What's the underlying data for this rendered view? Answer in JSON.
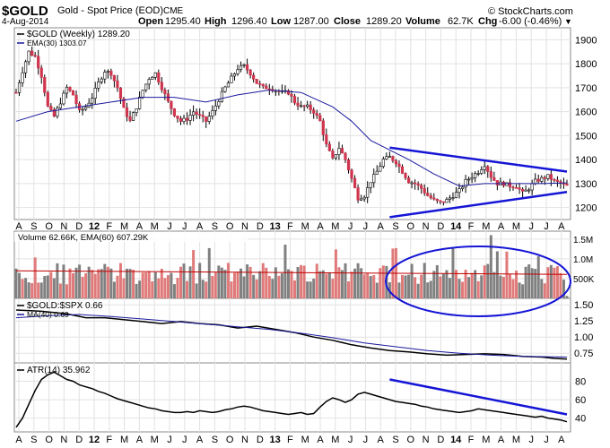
{
  "header": {
    "symbol": "$GOLD",
    "description": "Gold - Spot Price (EOD)",
    "exchange": "CME",
    "date": "4-Aug-2014",
    "open_label": "Open",
    "open": "1295.40",
    "high_label": "High",
    "high": "1296.40",
    "low_label": "Low",
    "low": "1287.00",
    "close_label": "Close",
    "close": "1289.20",
    "volume_label": "Volume",
    "volume": "62.7K",
    "chg_label": "Chg",
    "chg": "-6.00 (-0.46%)",
    "chg_arrow": "▼",
    "watermark": "© StockCharts.com"
  },
  "colors": {
    "up": "#000000",
    "down": "#d0344e",
    "ema": "#1a1a9e",
    "vol_up": "#808080",
    "vol_down": "#e07a7a",
    "ema60": "#c00000",
    "annot": "#1515d6",
    "grid": "#e2e2e2"
  },
  "chart_data": [
    {
      "type": "candlestick",
      "legend": [
        "$GOLD (Weekly) 1289.20",
        "EMA(30) 1303.07"
      ],
      "x_tick_labels": [
        "A",
        "S",
        "O",
        "N",
        "D",
        "12",
        "F",
        "M",
        "A",
        "M",
        "J",
        "J",
        "A",
        "S",
        "O",
        "N",
        "D",
        "13",
        "F",
        "M",
        "A",
        "M",
        "J",
        "J",
        "A",
        "S",
        "O",
        "N",
        "D",
        "14",
        "F",
        "M",
        "A",
        "M",
        "J",
        "J",
        "A"
      ],
      "y_ticks": [
        1200,
        1300,
        1400,
        1500,
        1600,
        1700,
        1800,
        1900
      ],
      "ylim": [
        1150,
        1950
      ],
      "close_path": [
        [
          0,
          1680
        ],
        [
          2,
          1770
        ],
        [
          4,
          1850
        ],
        [
          6,
          1830
        ],
        [
          8,
          1750
        ],
        [
          10,
          1620
        ],
        [
          12,
          1580
        ],
        [
          14,
          1640
        ],
        [
          16,
          1700
        ],
        [
          18,
          1670
        ],
        [
          20,
          1600
        ],
        [
          22,
          1620
        ],
        [
          24,
          1660
        ],
        [
          26,
          1720
        ],
        [
          28,
          1770
        ],
        [
          30,
          1760
        ],
        [
          32,
          1700
        ],
        [
          34,
          1610
        ],
        [
          36,
          1560
        ],
        [
          38,
          1620
        ],
        [
          40,
          1690
        ],
        [
          42,
          1740
        ],
        [
          44,
          1760
        ],
        [
          46,
          1700
        ],
        [
          48,
          1640
        ],
        [
          50,
          1590
        ],
        [
          52,
          1560
        ],
        [
          54,
          1570
        ],
        [
          56,
          1600
        ],
        [
          58,
          1580
        ],
        [
          60,
          1560
        ],
        [
          62,
          1600
        ],
        [
          64,
          1650
        ],
        [
          66,
          1700
        ],
        [
          68,
          1740
        ],
        [
          70,
          1780
        ],
        [
          72,
          1790
        ],
        [
          74,
          1760
        ],
        [
          76,
          1720
        ],
        [
          78,
          1700
        ],
        [
          80,
          1700
        ],
        [
          82,
          1690
        ],
        [
          84,
          1680
        ],
        [
          86,
          1680
        ],
        [
          88,
          1640
        ],
        [
          90,
          1620
        ],
        [
          92,
          1620
        ],
        [
          94,
          1600
        ],
        [
          96,
          1560
        ],
        [
          98,
          1460
        ],
        [
          100,
          1400
        ],
        [
          102,
          1450
        ],
        [
          104,
          1400
        ],
        [
          106,
          1320
        ],
        [
          108,
          1240
        ],
        [
          110,
          1250
        ],
        [
          112,
          1310
        ],
        [
          114,
          1350
        ],
        [
          116,
          1400
        ],
        [
          118,
          1410
        ],
        [
          120,
          1390
        ],
        [
          122,
          1350
        ],
        [
          124,
          1310
        ],
        [
          126,
          1300
        ],
        [
          128,
          1280
        ],
        [
          130,
          1250
        ],
        [
          132,
          1230
        ],
        [
          134,
          1220
        ],
        [
          136,
          1230
        ],
        [
          138,
          1250
        ],
        [
          140,
          1270
        ],
        [
          142,
          1310
        ],
        [
          144,
          1330
        ],
        [
          146,
          1350
        ],
        [
          148,
          1380
        ],
        [
          150,
          1330
        ],
        [
          152,
          1300
        ],
        [
          154,
          1300
        ],
        [
          156,
          1290
        ],
        [
          158,
          1290
        ],
        [
          160,
          1260
        ],
        [
          162,
          1280
        ],
        [
          164,
          1310
        ],
        [
          166,
          1320
        ],
        [
          168,
          1330
        ],
        [
          170,
          1310
        ],
        [
          172,
          1300
        ],
        [
          174,
          1289.2
        ]
      ],
      "ema30_path": [
        [
          0,
          1560
        ],
        [
          10,
          1600
        ],
        [
          20,
          1620
        ],
        [
          30,
          1640
        ],
        [
          40,
          1660
        ],
        [
          50,
          1660
        ],
        [
          60,
          1640
        ],
        [
          70,
          1670
        ],
        [
          80,
          1690
        ],
        [
          90,
          1680
        ],
        [
          100,
          1620
        ],
        [
          106,
          1560
        ],
        [
          112,
          1480
        ],
        [
          118,
          1440
        ],
        [
          124,
          1400
        ],
        [
          132,
          1340
        ],
        [
          140,
          1290
        ],
        [
          148,
          1300
        ],
        [
          156,
          1300
        ],
        [
          166,
          1300
        ],
        [
          174,
          1303.07
        ]
      ],
      "annotations": {
        "upper_trendline": [
          [
            118,
            1450
          ],
          [
            174,
            1350
          ]
        ],
        "lower_trendline": [
          [
            118,
            1160
          ],
          [
            174,
            1265
          ]
        ]
      }
    },
    {
      "type": "bar",
      "legend": "Volume 62.66K, EMA(60) 607.29K",
      "y_tick_labels": [
        "1.5M",
        "1.0M",
        "500K"
      ],
      "y_ticks": [
        1500000,
        1000000,
        500000
      ],
      "ylim": [
        0,
        1700000
      ],
      "ema60": 607290,
      "annotation": "ellipse"
    },
    {
      "type": "line",
      "legend": [
        "$GOLD:$SPX 0.66",
        "MA(40) 0.69"
      ],
      "y_tick_labels": [
        "1.50",
        "1.25",
        "1.00",
        "0.75"
      ],
      "y_ticks": [
        1.5,
        1.25,
        1.0,
        0.75
      ],
      "ylim": [
        0.6,
        1.6
      ],
      "ratio_path": [
        [
          0,
          1.42
        ],
        [
          8,
          1.4
        ],
        [
          16,
          1.36
        ],
        [
          22,
          1.3
        ],
        [
          28,
          1.3
        ],
        [
          34,
          1.27
        ],
        [
          40,
          1.24
        ],
        [
          46,
          1.21
        ],
        [
          52,
          1.24
        ],
        [
          58,
          1.21
        ],
        [
          64,
          1.19
        ],
        [
          70,
          1.14
        ],
        [
          76,
          1.17
        ],
        [
          82,
          1.12
        ],
        [
          88,
          1.07
        ],
        [
          94,
          1.0
        ],
        [
          100,
          0.95
        ],
        [
          106,
          0.88
        ],
        [
          112,
          0.83
        ],
        [
          118,
          0.79
        ],
        [
          124,
          0.77
        ],
        [
          130,
          0.74
        ],
        [
          136,
          0.72
        ],
        [
          142,
          0.73
        ],
        [
          148,
          0.74
        ],
        [
          154,
          0.73
        ],
        [
          160,
          0.7
        ],
        [
          166,
          0.69
        ],
        [
          170,
          0.67
        ],
        [
          174,
          0.66
        ]
      ],
      "ma_path": [
        [
          0,
          1.3
        ],
        [
          10,
          1.33
        ],
        [
          20,
          1.35
        ],
        [
          30,
          1.32
        ],
        [
          40,
          1.28
        ],
        [
          50,
          1.24
        ],
        [
          60,
          1.2
        ],
        [
          70,
          1.16
        ],
        [
          80,
          1.12
        ],
        [
          90,
          1.06
        ],
        [
          100,
          0.99
        ],
        [
          110,
          0.91
        ],
        [
          120,
          0.85
        ],
        [
          130,
          0.79
        ],
        [
          140,
          0.75
        ],
        [
          150,
          0.72
        ],
        [
          160,
          0.7
        ],
        [
          174,
          0.69
        ]
      ]
    },
    {
      "type": "line",
      "legend": "ATR(14) 35.962",
      "y_tick_labels": [
        "80",
        "60",
        "40"
      ],
      "y_ticks": [
        80,
        60,
        40
      ],
      "ylim": [
        25,
        100
      ],
      "atr_path": [
        [
          0,
          30
        ],
        [
          2,
          40
        ],
        [
          4,
          55
        ],
        [
          6,
          70
        ],
        [
          8,
          82
        ],
        [
          10,
          87
        ],
        [
          12,
          90
        ],
        [
          14,
          86
        ],
        [
          16,
          82
        ],
        [
          18,
          80
        ],
        [
          20,
          76
        ],
        [
          22,
          74
        ],
        [
          24,
          72
        ],
        [
          26,
          69
        ],
        [
          28,
          67
        ],
        [
          30,
          64
        ],
        [
          32,
          61
        ],
        [
          34,
          59
        ],
        [
          36,
          57
        ],
        [
          38,
          55
        ],
        [
          40,
          53
        ],
        [
          42,
          51
        ],
        [
          44,
          50
        ],
        [
          46,
          48
        ],
        [
          48,
          47
        ],
        [
          50,
          46
        ],
        [
          52,
          46
        ],
        [
          54,
          47
        ],
        [
          56,
          46
        ],
        [
          58,
          48
        ],
        [
          60,
          47
        ],
        [
          62,
          46
        ],
        [
          64,
          47
        ],
        [
          66,
          49
        ],
        [
          68,
          50
        ],
        [
          70,
          52
        ],
        [
          72,
          53
        ],
        [
          74,
          52
        ],
        [
          76,
          50
        ],
        [
          78,
          48
        ],
        [
          80,
          47
        ],
        [
          82,
          46
        ],
        [
          84,
          45
        ],
        [
          86,
          44
        ],
        [
          88,
          45
        ],
        [
          90,
          46
        ],
        [
          92,
          44
        ],
        [
          94,
          45
        ],
        [
          96,
          52
        ],
        [
          98,
          58
        ],
        [
          100,
          62
        ],
        [
          102,
          60
        ],
        [
          104,
          57
        ],
        [
          106,
          60
        ],
        [
          108,
          66
        ],
        [
          110,
          68
        ],
        [
          112,
          66
        ],
        [
          114,
          64
        ],
        [
          116,
          62
        ],
        [
          118,
          60
        ],
        [
          120,
          58
        ],
        [
          122,
          57
        ],
        [
          124,
          56
        ],
        [
          126,
          55
        ],
        [
          128,
          53
        ],
        [
          130,
          52
        ],
        [
          132,
          50
        ],
        [
          134,
          49
        ],
        [
          136,
          48
        ],
        [
          138,
          47
        ],
        [
          140,
          46
        ],
        [
          142,
          47
        ],
        [
          144,
          48
        ],
        [
          146,
          50
        ],
        [
          148,
          49
        ],
        [
          150,
          48
        ],
        [
          152,
          47
        ],
        [
          154,
          46
        ],
        [
          156,
          45
        ],
        [
          158,
          44
        ],
        [
          160,
          43
        ],
        [
          162,
          42
        ],
        [
          164,
          41
        ],
        [
          166,
          42
        ],
        [
          168,
          40
        ],
        [
          170,
          39
        ],
        [
          172,
          38
        ],
        [
          174,
          36
        ]
      ],
      "annotation": {
        "trendline": [
          [
            118,
            82
          ],
          [
            174,
            44
          ]
        ]
      }
    }
  ]
}
